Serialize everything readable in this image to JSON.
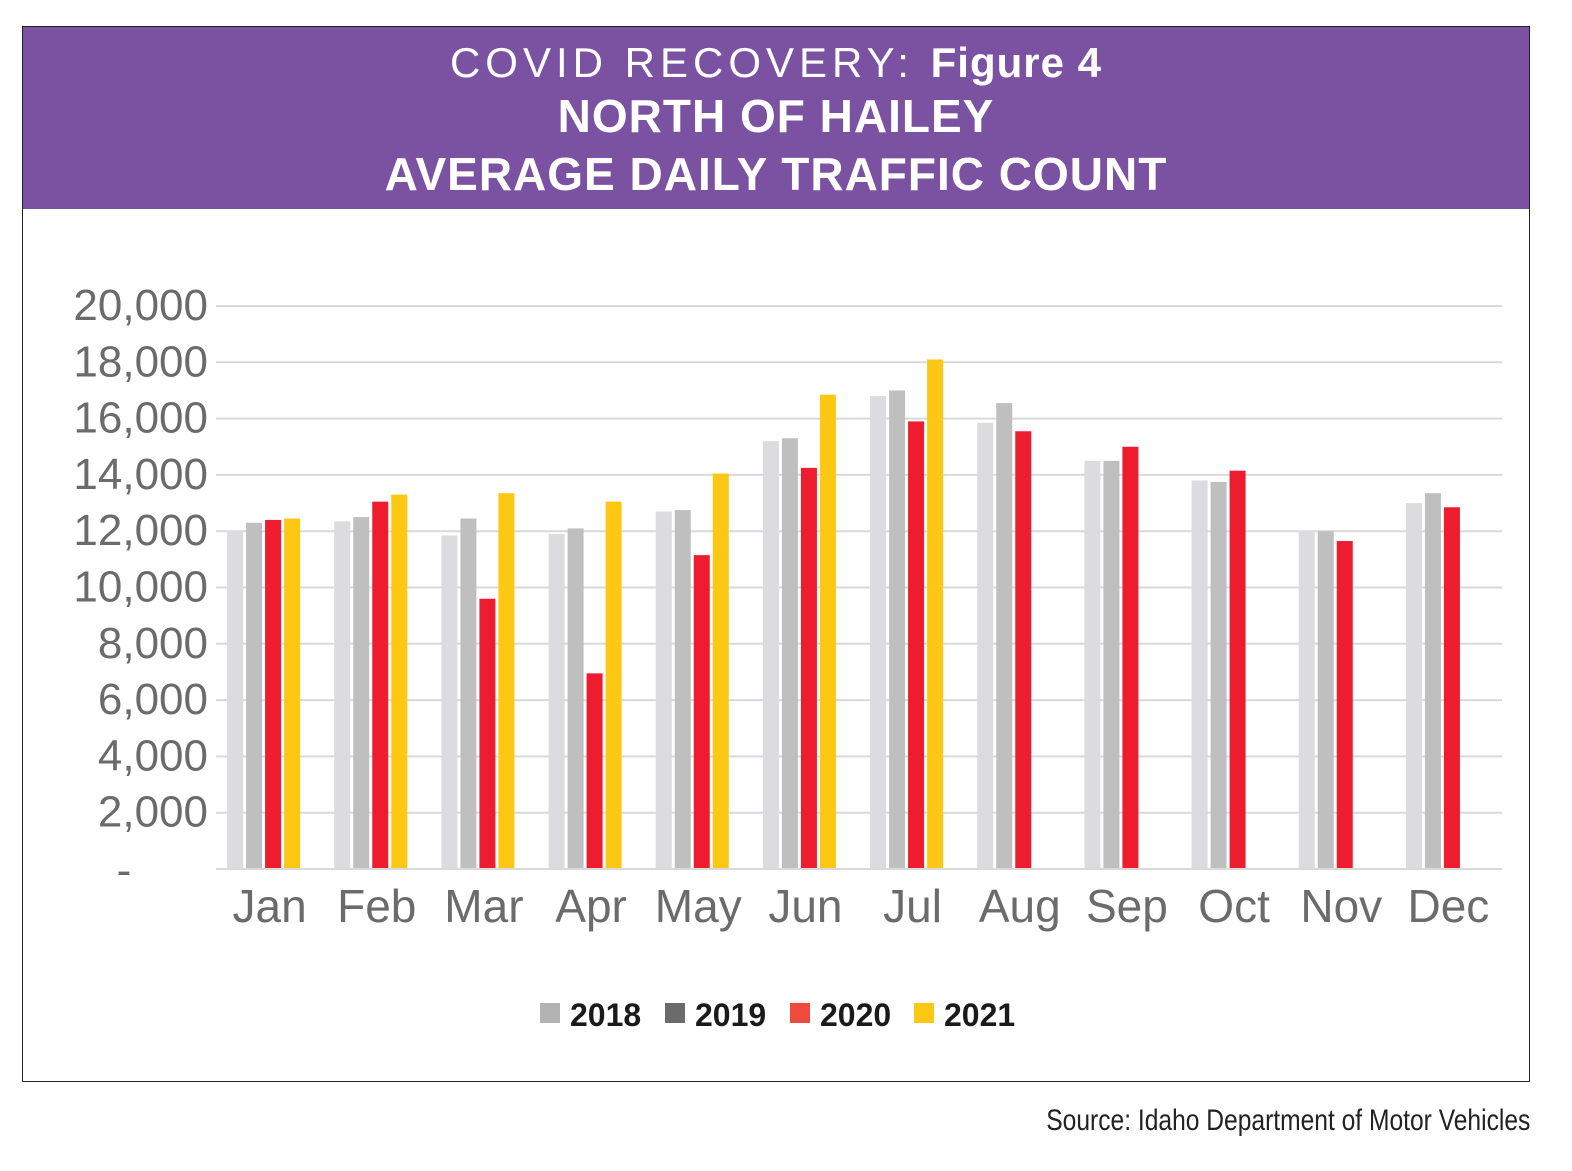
{
  "header": {
    "kicker": "COVID RECOVERY:",
    "figure_label": "Figure 4",
    "title_line1": "NORTH OF HAILEY",
    "title_line2": "AVERAGE DAILY TRAFFIC COUNT"
  },
  "source": "Source: Idaho Department of Motor Vehicles",
  "colors": {
    "banner": "#7b52a1",
    "grid": "#d9d9d9",
    "axis_text": "#6b6b6b"
  },
  "chart_data": {
    "type": "bar",
    "title": "NORTH OF HAILEY AVERAGE DAILY TRAFFIC COUNT",
    "xlabel": "",
    "ylabel": "",
    "ylim": [
      0,
      20000
    ],
    "grid": true,
    "legend_position": "bottom",
    "yticks": [
      0,
      2000,
      4000,
      6000,
      8000,
      10000,
      12000,
      14000,
      16000,
      18000,
      20000
    ],
    "ytick_labels": [
      "-",
      "2,000",
      "4,000",
      "6,000",
      "8,000",
      "10,000",
      "12,000",
      "14,000",
      "16,000",
      "18,000",
      "20,000"
    ],
    "categories": [
      "Jan",
      "Feb",
      "Mar",
      "Apr",
      "May",
      "Jun",
      "Jul",
      "Aug",
      "Sep",
      "Oct",
      "Nov",
      "Dec"
    ],
    "series": [
      {
        "name": "2018",
        "color": "#dcdcde",
        "legend_color": "#b3b3b3",
        "values": [
          12000,
          12350,
          11850,
          11900,
          12700,
          15200,
          16800,
          15850,
          14500,
          13800,
          12000,
          13000
        ]
      },
      {
        "name": "2019",
        "color": "#bfbfbf",
        "legend_color": "#6b6b6b",
        "values": [
          12300,
          12500,
          12450,
          12100,
          12750,
          15300,
          17000,
          16550,
          14500,
          13750,
          12000,
          13350
        ]
      },
      {
        "name": "2020",
        "color": "#ed1c2e",
        "legend_color": "#ee4b3e",
        "values": [
          12400,
          13050,
          9600,
          6950,
          11150,
          14250,
          15900,
          15550,
          15000,
          14150,
          11650,
          12850
        ]
      },
      {
        "name": "2021",
        "color": "#fcc813",
        "legend_color": "#fcc813",
        "values": [
          12450,
          13300,
          13350,
          13050,
          14050,
          16850,
          18100,
          null,
          null,
          null,
          null,
          null
        ]
      }
    ]
  }
}
